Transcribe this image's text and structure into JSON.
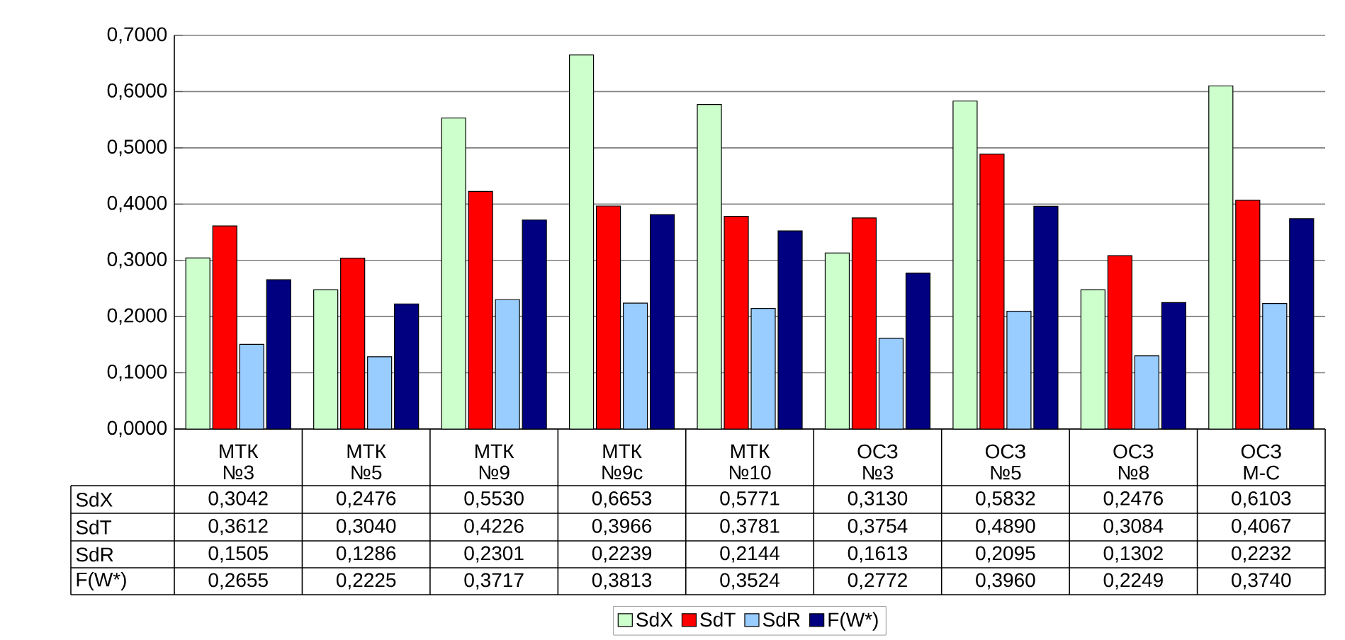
{
  "chart_data": {
    "type": "bar",
    "categories": [
      "МТК №3",
      "МТК №5",
      "МТК №9",
      "МТК №9с",
      "МТК №10",
      "ОСЗ №3",
      "ОСЗ №5",
      "ОСЗ №8",
      "ОСЗ М-С"
    ],
    "series": [
      {
        "name": "SdX",
        "color": "#ccffcc",
        "values": [
          0.3042,
          0.2476,
          0.553,
          0.6653,
          0.5771,
          0.313,
          0.5832,
          0.2476,
          0.6103
        ],
        "value_labels": [
          "0,3042",
          "0,2476",
          "0,5530",
          "0,6653",
          "0,5771",
          "0,3130",
          "0,5832",
          "0,2476",
          "0,6103"
        ]
      },
      {
        "name": "SdT",
        "color": "#ff0000",
        "values": [
          0.3612,
          0.304,
          0.4226,
          0.3966,
          0.3781,
          0.3754,
          0.489,
          0.3084,
          0.4067
        ],
        "value_labels": [
          "0,3612",
          "0,3040",
          "0,4226",
          "0,3966",
          "0,3781",
          "0,3754",
          "0,4890",
          "0,3084",
          "0,4067"
        ]
      },
      {
        "name": "SdR",
        "color": "#99ccff",
        "values": [
          0.1505,
          0.1286,
          0.2301,
          0.2239,
          0.2144,
          0.1613,
          0.2095,
          0.1302,
          0.2232
        ],
        "value_labels": [
          "0,1505",
          "0,1286",
          "0,2301",
          "0,2239",
          "0,2144",
          "0,1613",
          "0,2095",
          "0,1302",
          "0,2232"
        ]
      },
      {
        "name": "F(W*)",
        "color": "#000080",
        "values": [
          0.2655,
          0.2225,
          0.3717,
          0.3813,
          0.3524,
          0.2772,
          0.396,
          0.2249,
          0.374
        ],
        "value_labels": [
          "0,2655",
          "0,2225",
          "0,3717",
          "0,3813",
          "0,3524",
          "0,2772",
          "0,3960",
          "0,2249",
          "0,3740"
        ]
      }
    ],
    "ylim": [
      0,
      0.7
    ],
    "yticks": [
      {
        "value": 0,
        "label": "0,0000"
      },
      {
        "value": 0.1,
        "label": "0,1000"
      },
      {
        "value": 0.2,
        "label": "0,2000"
      },
      {
        "value": 0.3,
        "label": "0,3000"
      },
      {
        "value": 0.4,
        "label": "0,4000"
      },
      {
        "value": 0.5,
        "label": "0,5000"
      },
      {
        "value": 0.6,
        "label": "0,6000"
      },
      {
        "value": 0.7,
        "label": "0,7000"
      }
    ],
    "grid": "y",
    "legend": "bottom"
  }
}
